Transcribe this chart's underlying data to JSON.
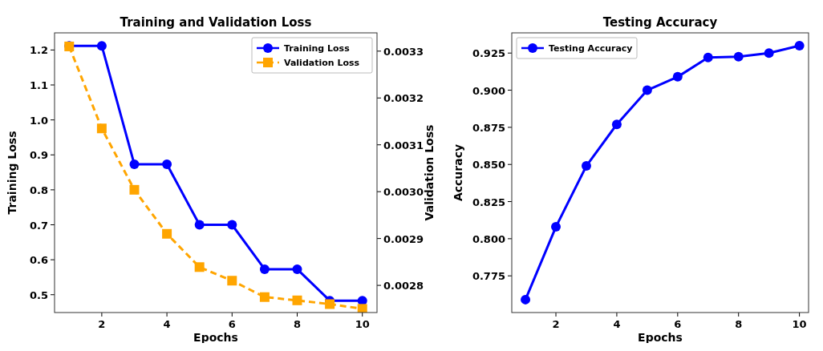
{
  "chart_data": [
    {
      "type": "line",
      "title": "Training and Validation Loss",
      "xlabel": "Epochs",
      "ylabel": "Training Loss",
      "y2label": "Validation Loss",
      "x": [
        1,
        2,
        3,
        4,
        5,
        6,
        7,
        8,
        9,
        10
      ],
      "xlim": [
        0.55,
        10.45
      ],
      "xticks": [
        2,
        4,
        6,
        8,
        10
      ],
      "ylim": [
        0.449,
        1.249
      ],
      "yticks": [
        0.5,
        0.6,
        0.7,
        0.8,
        0.9,
        {
          "value": 1.0,
          "label": "1.0"
        },
        1.1,
        1.2
      ],
      "y2lim": [
        0.002742,
        0.003339
      ],
      "y2ticks": [
        0.0028,
        0.0029,
        {
          "value": 0.003,
          "label": "0.0030"
        },
        0.0031,
        0.0032,
        0.0033
      ],
      "legend": "top right",
      "grid": false,
      "series": [
        {
          "name": "Training Loss",
          "color": "#0000ff",
          "marker": "circle",
          "line_style": "solid",
          "values": [
            1.212,
            1.212,
            0.873,
            0.873,
            0.7,
            0.7,
            0.573,
            0.573,
            0.483,
            0.483
          ]
        },
        {
          "name": "Validation Loss",
          "color": "#ffa500",
          "marker": "square",
          "line_style": "dashed",
          "axis": "y2",
          "values": [
            0.00331,
            0.003135,
            0.003004,
            0.00291,
            0.002839,
            0.00281,
            0.002775,
            0.002768,
            0.00276,
            0.00275
          ]
        }
      ]
    },
    {
      "type": "line",
      "title": "Testing Accuracy",
      "xlabel": "Epochs",
      "ylabel": "Accuracy",
      "x": [
        1,
        2,
        3,
        4,
        5,
        6,
        7,
        8,
        9,
        10
      ],
      "xlim": [
        0.55,
        10.3
      ],
      "xticks": [
        2,
        4,
        6,
        8,
        10
      ],
      "ylim": [
        0.7503,
        0.9386
      ],
      "yticks": [
        0.775,
        {
          "value": 0.8,
          "label": "0.800"
        },
        0.825,
        {
          "value": 0.85,
          "label": "0.850"
        },
        0.875,
        {
          "value": 0.9,
          "label": "0.900"
        },
        0.925
      ],
      "legend": "top left",
      "grid": false,
      "series": [
        {
          "name": "Testing Accuracy",
          "color": "#0000ff",
          "marker": "circle",
          "line_style": "solid",
          "values": [
            0.759,
            0.808,
            0.849,
            0.877,
            0.9,
            0.909,
            0.922,
            0.9225,
            0.925,
            0.93
          ]
        }
      ]
    }
  ]
}
